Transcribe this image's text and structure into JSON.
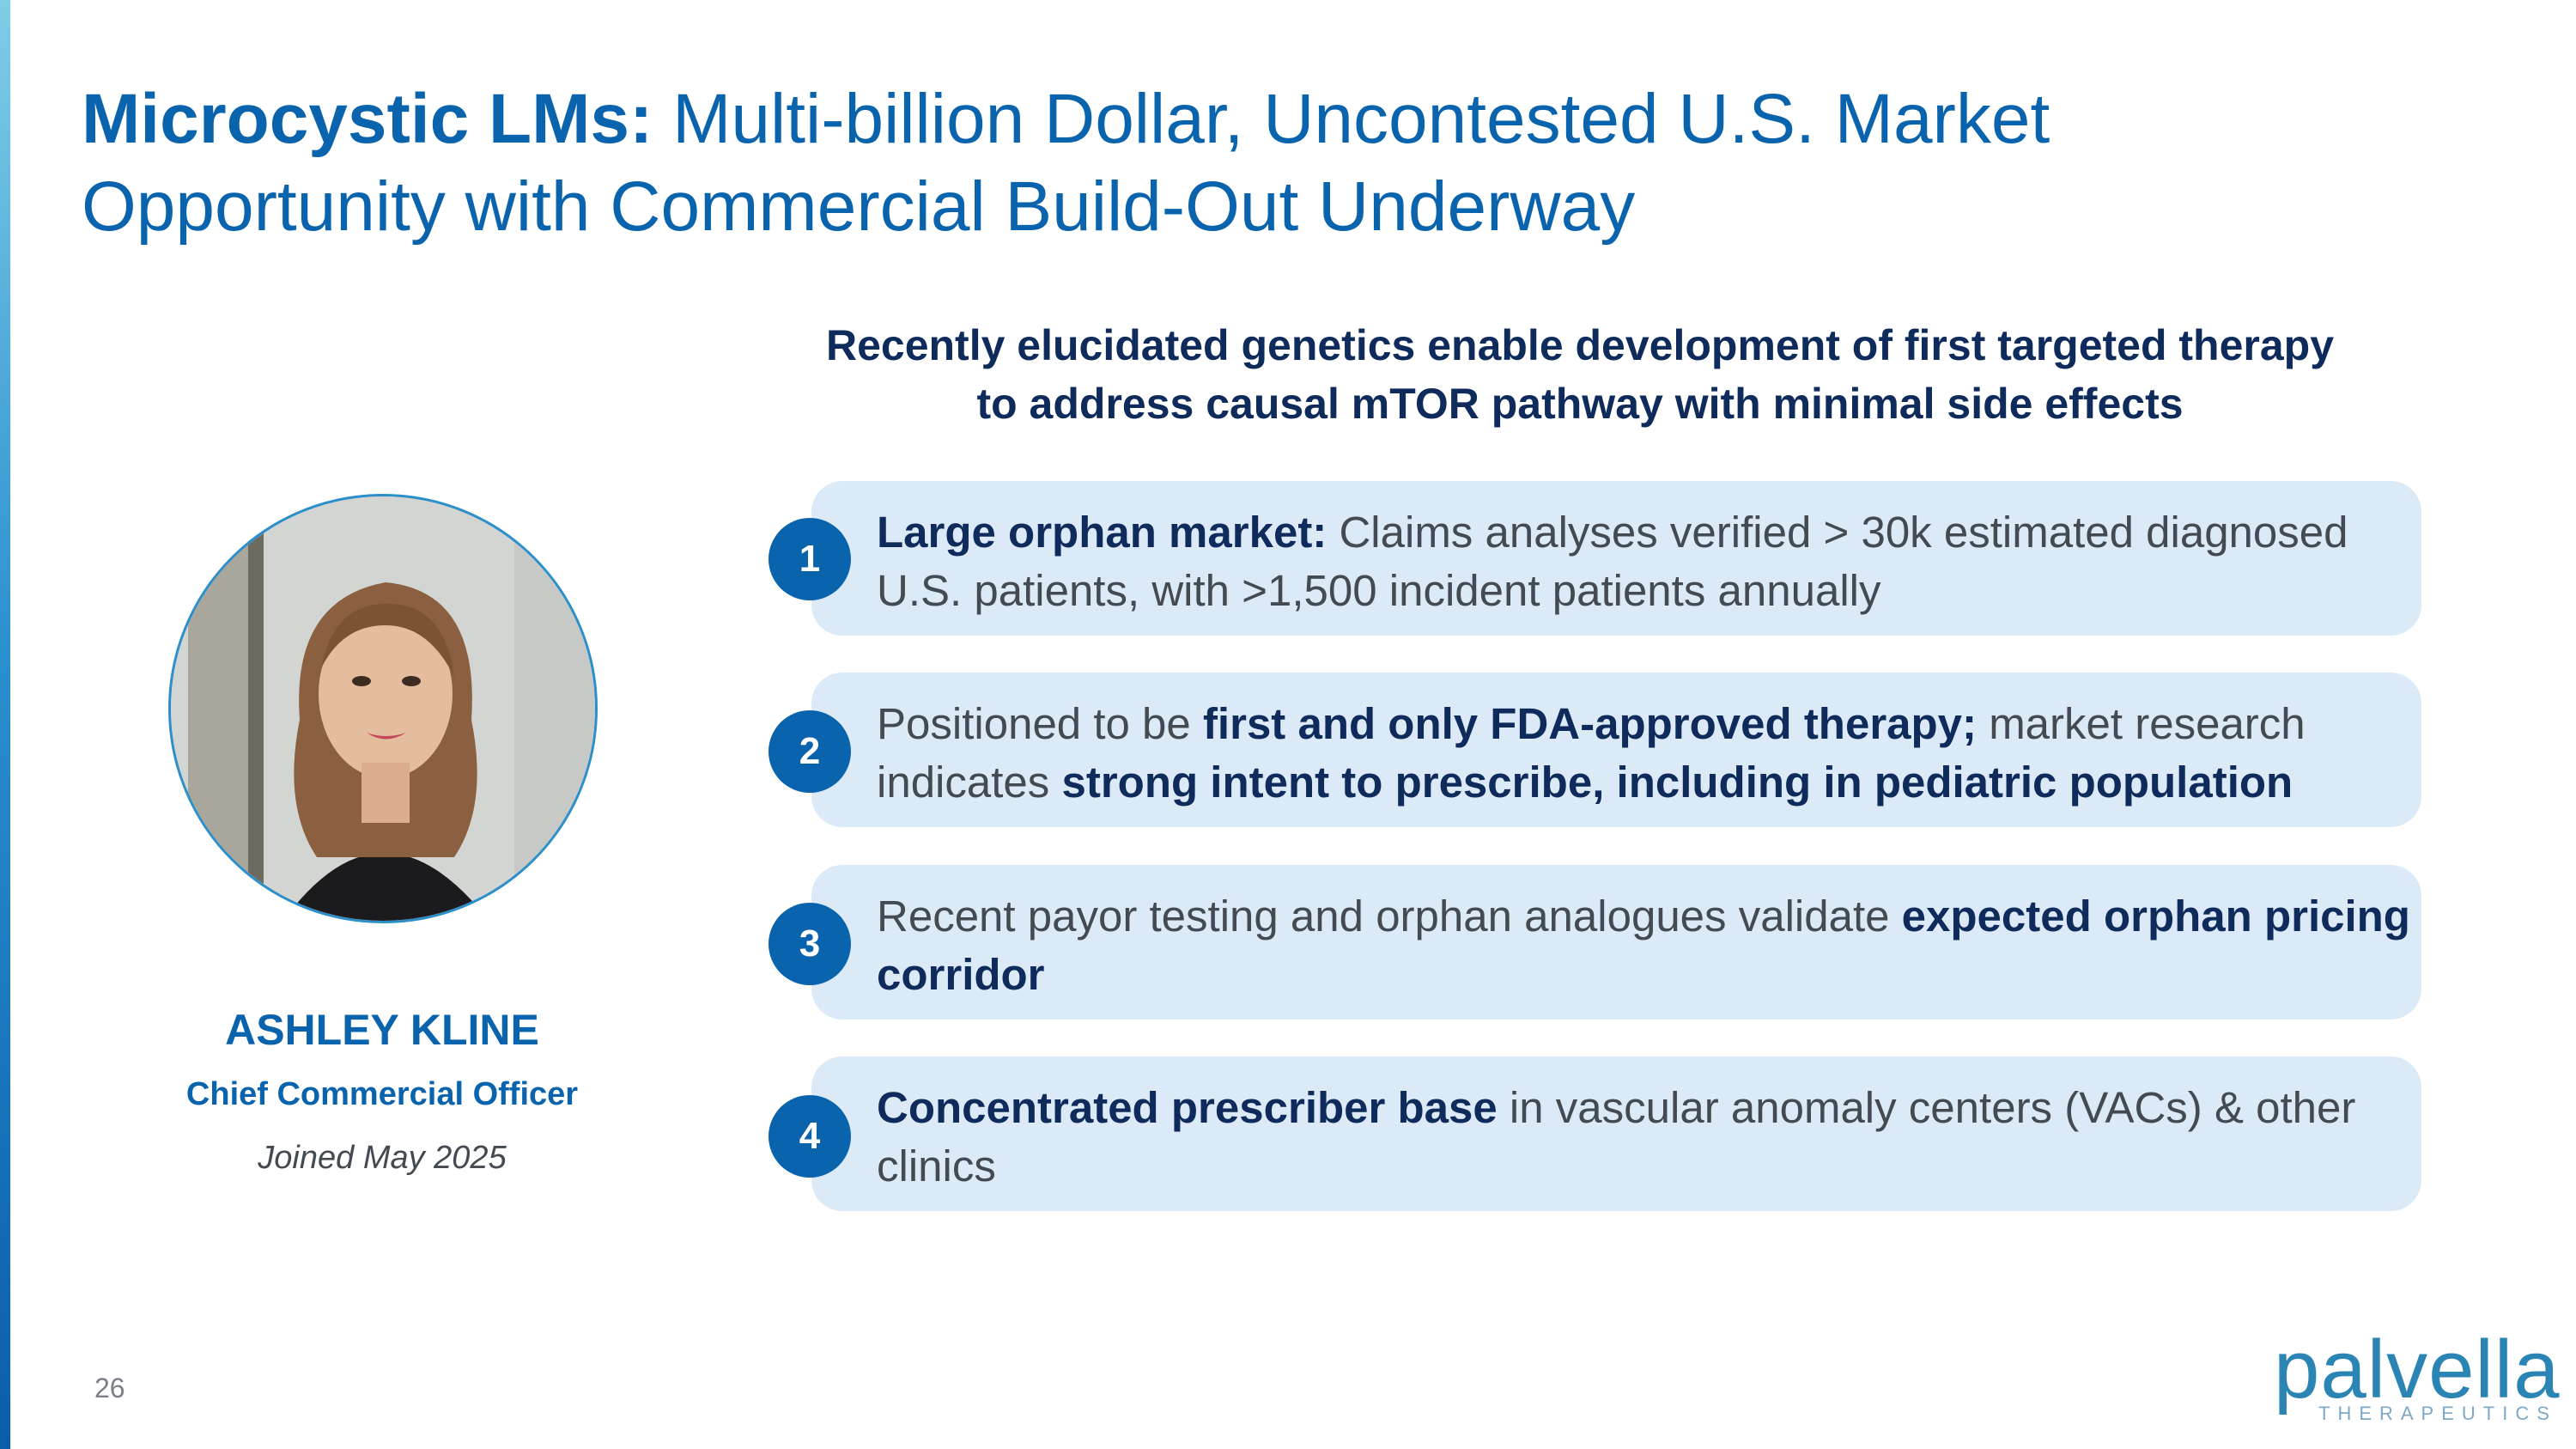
{
  "title": {
    "bold": "Microcystic LMs:",
    "line1_rest": " Multi-billion Dollar, Uncontested U.S. Market",
    "line2": "Opportunity with Commercial Build-Out Underway"
  },
  "tagline": {
    "line1": "Recently elucidated genetics enable development of first targeted therapy",
    "line2": "to address causal mTOR pathway with minimal side effects"
  },
  "person": {
    "name": "ASHLEY KLINE",
    "role": "Chief Commercial Officer",
    "joined": "Joined May 2025"
  },
  "points": [
    {
      "number": "1",
      "segments": [
        {
          "text": "Large orphan market:",
          "bold": true
        },
        {
          "text": " Claims analyses verified > 30k estimated diagnosed U.S. patients, with >1,500 incident patients annually",
          "bold": false
        }
      ]
    },
    {
      "number": "2",
      "segments": [
        {
          "text": "Positioned to be ",
          "bold": false
        },
        {
          "text": "first and only FDA-approved therapy;",
          "bold": true
        },
        {
          "text": " market research indicates ",
          "bold": false
        },
        {
          "text": "strong intent to prescribe, including in pediatric population",
          "bold": true
        }
      ]
    },
    {
      "number": "3",
      "segments": [
        {
          "text": "Recent payor testing and orphan analogues validate ",
          "bold": false
        },
        {
          "text": "expected orphan pricing corridor",
          "bold": true
        }
      ]
    },
    {
      "number": "4",
      "segments": [
        {
          "text": "Concentrated prescriber base",
          "bold": true
        },
        {
          "text": " in vascular anomaly centers (VACs) & other clinics",
          "bold": false
        }
      ]
    }
  ],
  "footer": {
    "page_number": "26",
    "logo_word": "palvella",
    "logo_sub": "THERAPEUTICS"
  },
  "colors": {
    "accent": "#0a63ad",
    "navy": "#0f2b5b",
    "card_bg": "#dce9f7",
    "body_text": "#444a52"
  },
  "icons": {
    "portrait": "person-photo"
  }
}
